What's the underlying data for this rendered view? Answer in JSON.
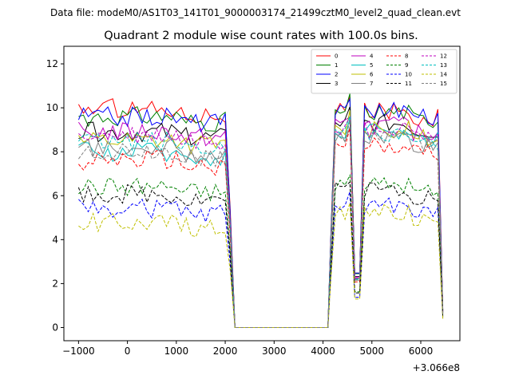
{
  "suptitle": "Data file: modeM0/AS1T03_141T01_9000003174_21499cztM0_level2_quad_clean.evt",
  "chart_data": {
    "type": "line",
    "title": "Quadrant 2 module wise count rates with 100.0s bins.",
    "xlabel": "",
    "ylabel": "",
    "x_offset_label": "+3.066e8",
    "xlim": [
      -1300,
      6800
    ],
    "ylim": [
      -0.6,
      12.8
    ],
    "xticks": [
      -1000,
      0,
      1000,
      2000,
      3000,
      4000,
      5000,
      6000
    ],
    "xtick_labels": [
      "−1000",
      "0",
      "1000",
      "2000",
      "3000",
      "4000",
      "5000",
      "6000"
    ],
    "yticks": [
      0,
      2,
      4,
      6,
      8,
      10,
      12
    ],
    "ytick_labels": [
      "0",
      "2",
      "4",
      "6",
      "8",
      "10",
      "12"
    ],
    "grid": false,
    "legend_position": "top-right",
    "legend_columns": 4,
    "x_segments": [
      [
        -1000,
        2000,
        100
      ],
      [
        2100,
        2300,
        100
      ],
      [
        2300,
        4100,
        100
      ],
      [
        4150,
        6450,
        100
      ]
    ],
    "series": [
      {
        "name": "0",
        "color": "#ff0000",
        "dash": "solid",
        "base": 10.0,
        "active": 9.9
      },
      {
        "name": "1",
        "color": "#008000",
        "dash": "solid",
        "base": 9.6,
        "active": 9.8
      },
      {
        "name": "2",
        "color": "#0000ff",
        "dash": "solid",
        "base": 9.6,
        "active": 9.9
      },
      {
        "name": "3",
        "color": "#000000",
        "dash": "solid",
        "base": 8.9,
        "active": 9.3
      },
      {
        "name": "4",
        "color": "#bf00bf",
        "dash": "solid",
        "base": 8.9,
        "active": 9.2
      },
      {
        "name": "5",
        "color": "#00bfbf",
        "dash": "solid",
        "base": 8.0,
        "active": 8.9
      },
      {
        "name": "6",
        "color": "#bfbf00",
        "dash": "solid",
        "base": 8.6,
        "active": 9.0
      },
      {
        "name": "7",
        "color": "#808080",
        "dash": "solid",
        "base": 8.2,
        "active": 8.6
      },
      {
        "name": "8",
        "color": "#ff0000",
        "dash": "dashed",
        "base": 7.6,
        "active": 8.3
      },
      {
        "name": "9",
        "color": "#008000",
        "dash": "dashed",
        "base": 6.4,
        "active": 6.5
      },
      {
        "name": "10",
        "color": "#0000ff",
        "dash": "dashed",
        "base": 5.4,
        "active": 5.5
      },
      {
        "name": "11",
        "color": "#000000",
        "dash": "dashed",
        "base": 6.1,
        "active": 6.3
      },
      {
        "name": "12",
        "color": "#bf00bf",
        "dash": "dashed",
        "base": 8.7,
        "active": 9.0
      },
      {
        "name": "13",
        "color": "#00bfbf",
        "dash": "dashed",
        "base": 8.5,
        "active": 8.8
      },
      {
        "name": "14",
        "color": "#bfbf00",
        "dash": "dashed",
        "base": 4.8,
        "active": 5.2
      },
      {
        "name": "15",
        "color": "#808080",
        "dash": "dashed",
        "base": 8.0,
        "active": 8.7
      }
    ]
  }
}
